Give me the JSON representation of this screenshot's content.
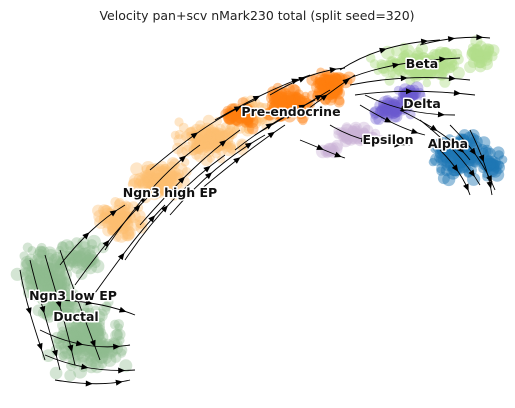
{
  "chart_data": {
    "type": "scatter",
    "subtype": "velocity-stream-embedding",
    "title": "Velocity pan+scv nMark230 total (split seed=320)",
    "xlabel": "",
    "ylabel": "",
    "axes_visible": false,
    "grid": false,
    "legend": "on data",
    "background": "#ffffff",
    "stream_color": "#000000",
    "clusters": [
      {
        "name": "Ductal",
        "color": "#8fbc8f",
        "alpha": 0.55
      },
      {
        "name": "Ngn3 low EP",
        "color": "#8fbc8f",
        "alpha": 0.55
      },
      {
        "name": "Ngn3 high EP",
        "color": "#fdbf6f",
        "alpha": 0.55
      },
      {
        "name": "Pre-endocrine",
        "color": "#ff7f0e",
        "alpha": 0.6
      },
      {
        "name": "Beta",
        "color": "#b2df8a",
        "alpha": 0.65
      },
      {
        "name": "Delta",
        "color": "#6a5acd",
        "alpha": 0.5
      },
      {
        "name": "Epsilon",
        "color": "#cab2d6",
        "alpha": 0.6
      },
      {
        "name": "Alpha",
        "color": "#1f77b4",
        "alpha": 0.65
      }
    ]
  }
}
